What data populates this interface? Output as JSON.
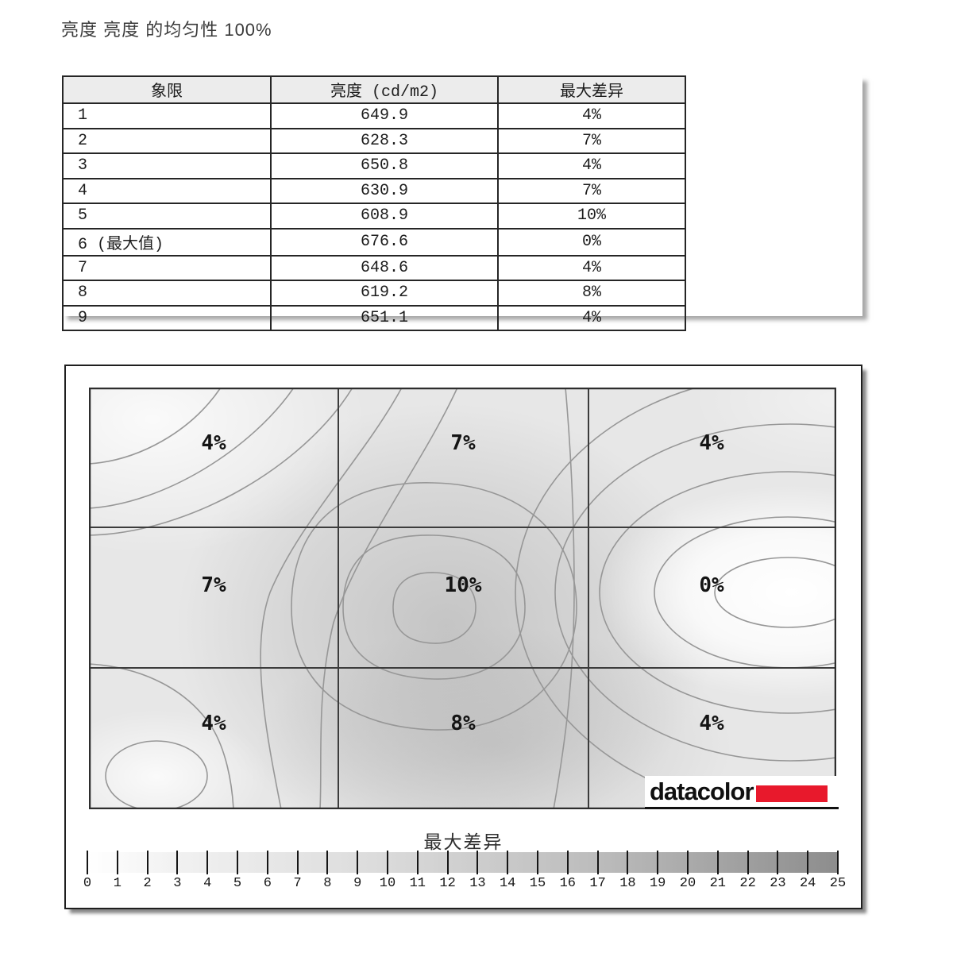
{
  "page": {
    "title": "亮度 亮度 的均匀性 100%"
  },
  "table": {
    "headers": [
      "象限",
      "亮度 (cd/m2)",
      "最大差异"
    ],
    "rows": [
      [
        "1",
        "649.9",
        "4%"
      ],
      [
        "2",
        "628.3",
        "7%"
      ],
      [
        "3",
        "650.8",
        "4%"
      ],
      [
        "4",
        "630.9",
        "7%"
      ],
      [
        "5",
        "608.9",
        "10%"
      ],
      [
        "6 (最大值)",
        "676.6",
        "0%"
      ],
      [
        "7",
        "648.6",
        "4%"
      ],
      [
        "8",
        "619.2",
        "8%"
      ],
      [
        "9",
        "651.1",
        "4%"
      ]
    ]
  },
  "map": {
    "cells": [
      [
        "4%",
        "7%",
        "4%"
      ],
      [
        "7%",
        "10%",
        "0%"
      ],
      [
        "4%",
        "8%",
        "4%"
      ]
    ],
    "logo_text": "datacolor",
    "logo_red": "#E8192C"
  },
  "scale": {
    "label": "最大差异",
    "ticks": [
      "0",
      "1",
      "2",
      "3",
      "4",
      "5",
      "6",
      "7",
      "8",
      "9",
      "10",
      "11",
      "12",
      "13",
      "14",
      "15",
      "16",
      "17",
      "18",
      "19",
      "20",
      "21",
      "22",
      "23",
      "24",
      "25"
    ],
    "min": 0,
    "max": 25
  },
  "colors": {
    "logo_red": "#E8192C",
    "contour_line": "#979797",
    "grid_line": "#3c3c3c",
    "map_base_gray": "#e7e7e7"
  },
  "chart_data": {
    "type": "heatmap",
    "title": "亮度 亮度 的均匀性 100%",
    "grid": {
      "rows": 3,
      "cols": 3
    },
    "cell_values_max_difference_percent": [
      [
        4,
        7,
        4
      ],
      [
        7,
        10,
        0
      ],
      [
        4,
        8,
        4
      ]
    ],
    "quadrants": [
      {
        "quadrant": "1",
        "luminance_cd_m2": 649.9,
        "max_difference_percent": 4
      },
      {
        "quadrant": "2",
        "luminance_cd_m2": 628.3,
        "max_difference_percent": 7
      },
      {
        "quadrant": "3",
        "luminance_cd_m2": 650.8,
        "max_difference_percent": 4
      },
      {
        "quadrant": "4",
        "luminance_cd_m2": 630.9,
        "max_difference_percent": 7
      },
      {
        "quadrant": "5",
        "luminance_cd_m2": 608.9,
        "max_difference_percent": 10
      },
      {
        "quadrant": "6 (最大值)",
        "luminance_cd_m2": 676.6,
        "max_difference_percent": 0
      },
      {
        "quadrant": "7",
        "luminance_cd_m2": 648.6,
        "max_difference_percent": 4
      },
      {
        "quadrant": "8",
        "luminance_cd_m2": 619.2,
        "max_difference_percent": 8
      },
      {
        "quadrant": "9",
        "luminance_cd_m2": 651.1,
        "max_difference_percent": 4
      }
    ],
    "colorbar": {
      "label": "最大差异",
      "min": 0,
      "max": 25,
      "tick_step": 1,
      "position": "bottom"
    },
    "table_headers": [
      "象限",
      "亮度 (cd/m2)",
      "最大差异"
    ]
  }
}
